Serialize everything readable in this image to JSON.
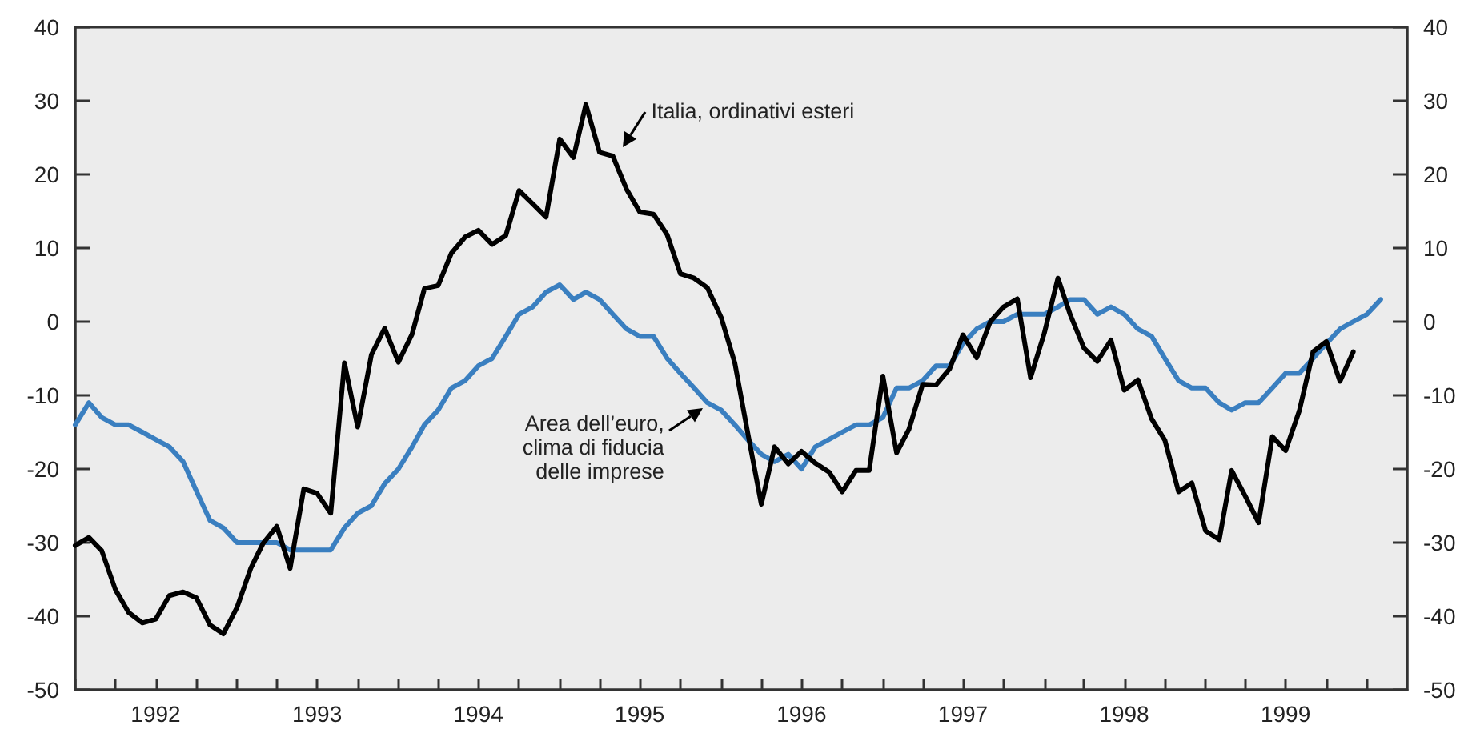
{
  "chart_data": {
    "type": "line",
    "x": [
      "1992-01",
      "1992-02",
      "1992-03",
      "1992-04",
      "1992-05",
      "1992-06",
      "1992-07",
      "1992-08",
      "1992-09",
      "1992-10",
      "1992-11",
      "1992-12",
      "1993-01",
      "1993-02",
      "1993-03",
      "1993-04",
      "1993-05",
      "1993-06",
      "1993-07",
      "1993-08",
      "1993-09",
      "1993-10",
      "1993-11",
      "1993-12",
      "1994-01",
      "1994-02",
      "1994-03",
      "1994-04",
      "1994-05",
      "1994-06",
      "1994-07",
      "1994-08",
      "1994-09",
      "1994-10",
      "1994-11",
      "1994-12",
      "1995-01",
      "1995-02",
      "1995-03",
      "1995-04",
      "1995-05",
      "1995-06",
      "1995-07",
      "1995-08",
      "1995-09",
      "1995-10",
      "1995-11",
      "1995-12",
      "1996-01",
      "1996-02",
      "1996-03",
      "1996-04",
      "1996-05",
      "1996-06",
      "1996-07",
      "1996-08",
      "1996-09",
      "1996-10",
      "1996-11",
      "1996-12",
      "1997-01",
      "1997-02",
      "1997-03",
      "1997-04",
      "1997-05",
      "1997-06",
      "1997-07",
      "1997-08",
      "1997-09",
      "1997-10",
      "1997-11",
      "1997-12",
      "1998-01",
      "1998-02",
      "1998-03",
      "1998-04",
      "1998-05",
      "1998-06",
      "1998-07",
      "1998-08",
      "1998-09",
      "1998-10",
      "1998-11",
      "1998-12",
      "1999-01",
      "1999-02",
      "1999-03",
      "1999-04",
      "1999-05",
      "1999-06",
      "1999-07",
      "1999-08",
      "1999-09",
      "1999-10",
      "1999-11",
      "1999-12",
      "2000-01",
      "2000-02"
    ],
    "series": [
      {
        "color": "#3a7fc0",
        "values": [
          -14,
          -11,
          -13,
          -14,
          -14,
          -15,
          -16,
          -17,
          -19,
          -23,
          -27,
          -28,
          -30,
          -30,
          -30,
          -30,
          -31,
          -31,
          -31,
          -31,
          -28,
          -26,
          -25,
          -22,
          -20,
          -17,
          -14,
          -12,
          -9,
          -8,
          -6,
          -5,
          -2,
          1,
          2,
          4,
          5,
          3,
          4,
          3,
          1,
          -1,
          -2,
          -2,
          -5,
          -7,
          -9,
          -11,
          -12,
          -14,
          -16,
          -18,
          -19,
          -18,
          -20,
          -17,
          -16,
          -15,
          -14,
          -14,
          -13,
          -9,
          -9,
          -8,
          -6,
          -6,
          -3,
          -1,
          0,
          0,
          1,
          1,
          1,
          2,
          3,
          3,
          1,
          2,
          1,
          -1,
          -2,
          -5,
          -8,
          -9,
          -9,
          -11,
          -12,
          -11,
          -11,
          -9,
          -7,
          -7,
          -5,
          -3,
          -1,
          0,
          1,
          3
        ]
      },
      {
        "color": "#000000",
        "values": [
          -30.4,
          -29.3,
          -31.1,
          -36.4,
          -39.5,
          -40.9,
          -40.4,
          -37.2,
          -36.7,
          -37.5,
          -41.2,
          -42.4,
          -38.8,
          -33.5,
          -30.1,
          -27.8,
          -33.5,
          -22.7,
          -23.3,
          -26.0,
          -5.6,
          -14.3,
          -4.5,
          -0.9,
          -5.5,
          -1.7,
          4.5,
          4.9,
          9.3,
          11.5,
          12.4,
          10.5,
          11.7,
          17.8,
          16.0,
          14.2,
          24.8,
          22.3,
          29.5,
          23.0,
          22.5,
          18.0,
          14.9,
          14.6,
          11.8,
          6.5,
          5.9,
          4.6,
          0.6,
          -5.6,
          -15.0,
          -24.8,
          -17.0,
          -19.3,
          -17.6,
          -19.2,
          -20.4,
          -23.1,
          -20.2,
          -20.2,
          -7.4,
          -17.8,
          -14.6,
          -8.5,
          -8.6,
          -6.4,
          -1.8,
          -4.9,
          0.0,
          2.0,
          3.1,
          -7.6,
          -1.6,
          5.9,
          0.9,
          -3.6,
          -5.4,
          -2.5,
          -9.3,
          -7.9,
          -13.2,
          -16.1,
          -23.1,
          -21.9,
          -28.4,
          -29.6,
          -20.2,
          -23.7,
          -27.3,
          -15.6,
          -17.5,
          -12.1,
          -4.1,
          -2.7,
          -8.1,
          -4.1,
          null,
          null
        ]
      }
    ],
    "annotations": [
      {
        "text": "Italia, ordinativi esteri",
        "x": "1995-05",
        "y": 22.5
      },
      {
        "text": "Area dell’euro,\nclima di fiducia\ndelle imprese",
        "x": "1995-12",
        "y": -11.2
      }
    ],
    "xlim": [
      "1992-01",
      "2000-04"
    ],
    "xticks": [
      {
        "value": "1992-01",
        "label": null
      },
      {
        "value": "1992-04",
        "label": null
      },
      {
        "value": "1992-07",
        "label": "1992"
      },
      {
        "value": "1992-10",
        "label": null
      },
      {
        "value": "1993-01",
        "label": null
      },
      {
        "value": "1993-04",
        "label": null
      },
      {
        "value": "1993-07",
        "label": "1993"
      },
      {
        "value": "1993-10",
        "label": null
      },
      {
        "value": "1994-01",
        "label": null
      },
      {
        "value": "1994-04",
        "label": null
      },
      {
        "value": "1994-07",
        "label": "1994"
      },
      {
        "value": "1994-10",
        "label": null
      },
      {
        "value": "1995-01",
        "label": null
      },
      {
        "value": "1995-04",
        "label": null
      },
      {
        "value": "1995-07",
        "label": "1995"
      },
      {
        "value": "1995-10",
        "label": null
      },
      {
        "value": "1996-01",
        "label": null
      },
      {
        "value": "1996-04",
        "label": null
      },
      {
        "value": "1996-07",
        "label": "1996"
      },
      {
        "value": "1996-10",
        "label": null
      },
      {
        "value": "1997-01",
        "label": null
      },
      {
        "value": "1997-04",
        "label": null
      },
      {
        "value": "1997-07",
        "label": "1997"
      },
      {
        "value": "1997-10",
        "label": null
      },
      {
        "value": "1998-01",
        "label": null
      },
      {
        "value": "1998-04",
        "label": null
      },
      {
        "value": "1998-07",
        "label": "1998"
      },
      {
        "value": "1998-10",
        "label": null
      },
      {
        "value": "1999-01",
        "label": null
      },
      {
        "value": "1999-04",
        "label": null
      },
      {
        "value": "1999-07",
        "label": "1999"
      },
      {
        "value": "1999-10",
        "label": null
      },
      {
        "value": "2000-01",
        "label": null
      }
    ],
    "ylim": [
      -50,
      40
    ],
    "yticks": [
      -50,
      -40,
      -30,
      -20,
      -10,
      0,
      10,
      20,
      30,
      40
    ],
    "y2lim": [
      -50,
      40
    ],
    "y2ticks": [
      -50,
      -40,
      -30,
      -20,
      -10,
      0,
      10,
      20,
      30,
      40
    ]
  }
}
